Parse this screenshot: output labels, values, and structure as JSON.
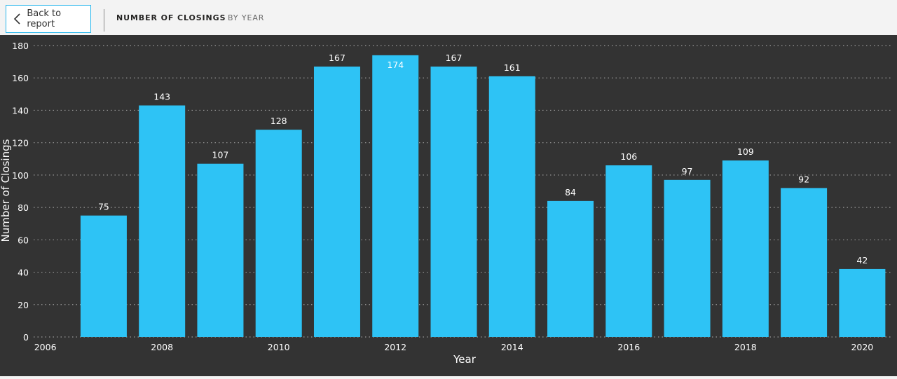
{
  "header": {
    "back_label": "Back to report",
    "title": "NUMBER OF CLOSINGS",
    "subtitle": "BY YEAR"
  },
  "colors": {
    "bar": "#2ec3f5",
    "background": "#333333",
    "text": "#ffffff",
    "grid": "#9a9a9a"
  },
  "chart_data": {
    "type": "bar",
    "xlabel": "Year",
    "ylabel": "Number of Closings",
    "ylim": [
      0,
      180
    ],
    "yticks": [
      0,
      20,
      40,
      60,
      80,
      100,
      120,
      140,
      160,
      180
    ],
    "xlim": [
      2005.8,
      2020.5
    ],
    "xticks": [
      2006,
      2008,
      2010,
      2012,
      2014,
      2016,
      2018,
      2020
    ],
    "x": [
      2007,
      2008,
      2009,
      2010,
      2011,
      2012,
      2013,
      2014,
      2015,
      2016,
      2017,
      2018,
      2019,
      2020
    ],
    "values": [
      75,
      143,
      107,
      128,
      167,
      174,
      167,
      161,
      84,
      106,
      97,
      109,
      92,
      42
    ],
    "grid": true,
    "data_labels": true
  }
}
